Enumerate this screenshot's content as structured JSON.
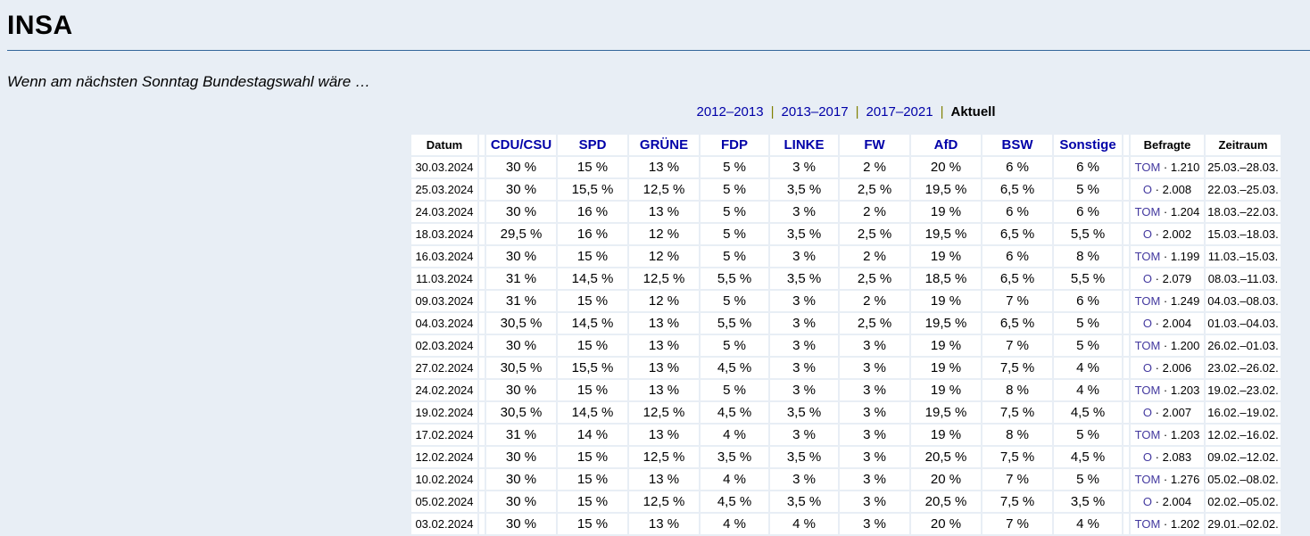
{
  "page": {
    "title": "INSA",
    "subtitle": "Wenn am nächsten Sonntag Bundestagswahl wäre …",
    "colors": {
      "background": "#E8EEF5",
      "heading_rule": "#33669A",
      "link": "#0000A8",
      "source_link": "#43399F",
      "nav_separator": "#808000",
      "cell_background": "#FFFFFF"
    }
  },
  "nav": {
    "separator": "|",
    "items": [
      {
        "label": "2012–2013",
        "active": false
      },
      {
        "label": "2013–2017",
        "active": false
      },
      {
        "label": "2017–2021",
        "active": false
      },
      {
        "label": "Aktuell",
        "active": true
      }
    ]
  },
  "table": {
    "columns": [
      "Datum",
      "CDU/CSU",
      "SPD",
      "GRÜNE",
      "FDP",
      "LINKE",
      "FW",
      "AfD",
      "BSW",
      "Sonstige",
      "Befragte",
      "Zeitraum"
    ],
    "befragte_separator": "·",
    "rows": [
      {
        "datum": "30.03.2024",
        "values": [
          "30 %",
          "15 %",
          "13 %",
          "5 %",
          "3 %",
          "2 %",
          "20 %",
          "6 %",
          "6 %"
        ],
        "source": "TOM",
        "befragte": "1.210",
        "zeitraum": "25.03.–28.03."
      },
      {
        "datum": "25.03.2024",
        "values": [
          "30 %",
          "15,5 %",
          "12,5 %",
          "5 %",
          "3,5 %",
          "2,5 %",
          "19,5 %",
          "6,5 %",
          "5 %"
        ],
        "source": "O",
        "befragte": "2.008",
        "zeitraum": "22.03.–25.03."
      },
      {
        "datum": "24.03.2024",
        "values": [
          "30 %",
          "16 %",
          "13 %",
          "5 %",
          "3 %",
          "2 %",
          "19 %",
          "6 %",
          "6 %"
        ],
        "source": "TOM",
        "befragte": "1.204",
        "zeitraum": "18.03.–22.03."
      },
      {
        "datum": "18.03.2024",
        "values": [
          "29,5 %",
          "16 %",
          "12 %",
          "5 %",
          "3,5 %",
          "2,5 %",
          "19,5 %",
          "6,5 %",
          "5,5 %"
        ],
        "source": "O",
        "befragte": "2.002",
        "zeitraum": "15.03.–18.03."
      },
      {
        "datum": "16.03.2024",
        "values": [
          "30 %",
          "15 %",
          "12 %",
          "5 %",
          "3 %",
          "2 %",
          "19 %",
          "6 %",
          "8 %"
        ],
        "source": "TOM",
        "befragte": "1.199",
        "zeitraum": "11.03.–15.03."
      },
      {
        "datum": "11.03.2024",
        "values": [
          "31 %",
          "14,5 %",
          "12,5 %",
          "5,5 %",
          "3,5 %",
          "2,5 %",
          "18,5 %",
          "6,5 %",
          "5,5 %"
        ],
        "source": "O",
        "befragte": "2.079",
        "zeitraum": "08.03.–11.03."
      },
      {
        "datum": "09.03.2024",
        "values": [
          "31 %",
          "15 %",
          "12 %",
          "5 %",
          "3 %",
          "2 %",
          "19 %",
          "7 %",
          "6 %"
        ],
        "source": "TOM",
        "befragte": "1.249",
        "zeitraum": "04.03.–08.03."
      },
      {
        "datum": "04.03.2024",
        "values": [
          "30,5 %",
          "14,5 %",
          "13 %",
          "5,5 %",
          "3 %",
          "2,5 %",
          "19,5 %",
          "6,5 %",
          "5 %"
        ],
        "source": "O",
        "befragte": "2.004",
        "zeitraum": "01.03.–04.03."
      },
      {
        "datum": "02.03.2024",
        "values": [
          "30 %",
          "15 %",
          "13 %",
          "5 %",
          "3 %",
          "3 %",
          "19 %",
          "7 %",
          "5 %"
        ],
        "source": "TOM",
        "befragte": "1.200",
        "zeitraum": "26.02.–01.03."
      },
      {
        "datum": "27.02.2024",
        "values": [
          "30,5 %",
          "15,5 %",
          "13 %",
          "4,5 %",
          "3 %",
          "3 %",
          "19 %",
          "7,5 %",
          "4 %"
        ],
        "source": "O",
        "befragte": "2.006",
        "zeitraum": "23.02.–26.02."
      },
      {
        "datum": "24.02.2024",
        "values": [
          "30 %",
          "15 %",
          "13 %",
          "5 %",
          "3 %",
          "3 %",
          "19 %",
          "8 %",
          "4 %"
        ],
        "source": "TOM",
        "befragte": "1.203",
        "zeitraum": "19.02.–23.02."
      },
      {
        "datum": "19.02.2024",
        "values": [
          "30,5 %",
          "14,5 %",
          "12,5 %",
          "4,5 %",
          "3,5 %",
          "3 %",
          "19,5 %",
          "7,5 %",
          "4,5 %"
        ],
        "source": "O",
        "befragte": "2.007",
        "zeitraum": "16.02.–19.02."
      },
      {
        "datum": "17.02.2024",
        "values": [
          "31 %",
          "14 %",
          "13 %",
          "4 %",
          "3 %",
          "3 %",
          "19 %",
          "8 %",
          "5 %"
        ],
        "source": "TOM",
        "befragte": "1.203",
        "zeitraum": "12.02.–16.02."
      },
      {
        "datum": "12.02.2024",
        "values": [
          "30 %",
          "15 %",
          "12,5 %",
          "3,5 %",
          "3,5 %",
          "3 %",
          "20,5 %",
          "7,5 %",
          "4,5 %"
        ],
        "source": "O",
        "befragte": "2.083",
        "zeitraum": "09.02.–12.02."
      },
      {
        "datum": "10.02.2024",
        "values": [
          "30 %",
          "15 %",
          "13 %",
          "4 %",
          "3 %",
          "3 %",
          "20 %",
          "7 %",
          "5 %"
        ],
        "source": "TOM",
        "befragte": "1.276",
        "zeitraum": "05.02.–08.02."
      },
      {
        "datum": "05.02.2024",
        "values": [
          "30 %",
          "15 %",
          "12,5 %",
          "4,5 %",
          "3,5 %",
          "3 %",
          "20,5 %",
          "7,5 %",
          "3,5 %"
        ],
        "source": "O",
        "befragte": "2.004",
        "zeitraum": "02.02.–05.02."
      },
      {
        "datum": "03.02.2024",
        "values": [
          "30 %",
          "15 %",
          "13 %",
          "4 %",
          "4 %",
          "3 %",
          "20 %",
          "7 %",
          "4 %"
        ],
        "source": "TOM",
        "befragte": "1.202",
        "zeitraum": "29.01.–02.02."
      }
    ]
  }
}
